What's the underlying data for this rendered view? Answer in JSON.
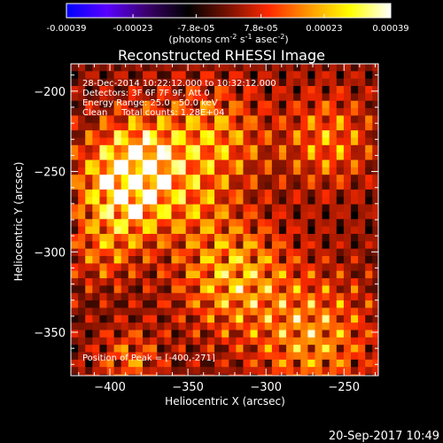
{
  "colorbar": {
    "ticks": [
      "-0.00039",
      "-0.00023",
      "-7.8e-05",
      "7.8e-05",
      "0.00023",
      "0.00039"
    ],
    "units_main": "(photons cm",
    "units_sup1": "-2",
    "units_mid": " s",
    "units_sup2": "-1",
    "units_tail": " asec",
    "units_sup3": "-2",
    "units_close": ")",
    "colormap": [
      "#0000ff",
      "#5a00ff",
      "#3a006a",
      "#000000",
      "#7a1200",
      "#ff2a00",
      "#ff9a00",
      "#ffff00",
      "#ffffff"
    ]
  },
  "chart_data": {
    "type": "heatmap",
    "title": "Reconstructed RHESSI Image",
    "xlabel": "Heliocentric X (arcsec)",
    "ylabel": "Heliocentric Y (arcsec)",
    "xlim": [
      -425,
      -228
    ],
    "ylim": [
      -377,
      -183
    ],
    "x_ticks": [
      -400,
      -350,
      -300,
      -250
    ],
    "y_ticks": [
      -200,
      -250,
      -300,
      -350
    ],
    "clim": [
      -0.00039,
      0.00039
    ],
    "annotations": [
      "28-Dec-2014 10:22:12.000 to 10:32:12.000",
      "Detectors: 3F 6F 7F 9F, Att 0",
      "Energy Range: 25.0 - 50.0 keV",
      "Clean     Total counts: 1.28E+04"
    ],
    "peak_label": "Position of Peak = [-400,-271]",
    "peak": [
      -400,
      -271
    ]
  },
  "footer": {
    "timestamp": "20-Sep-2017 10:49"
  }
}
